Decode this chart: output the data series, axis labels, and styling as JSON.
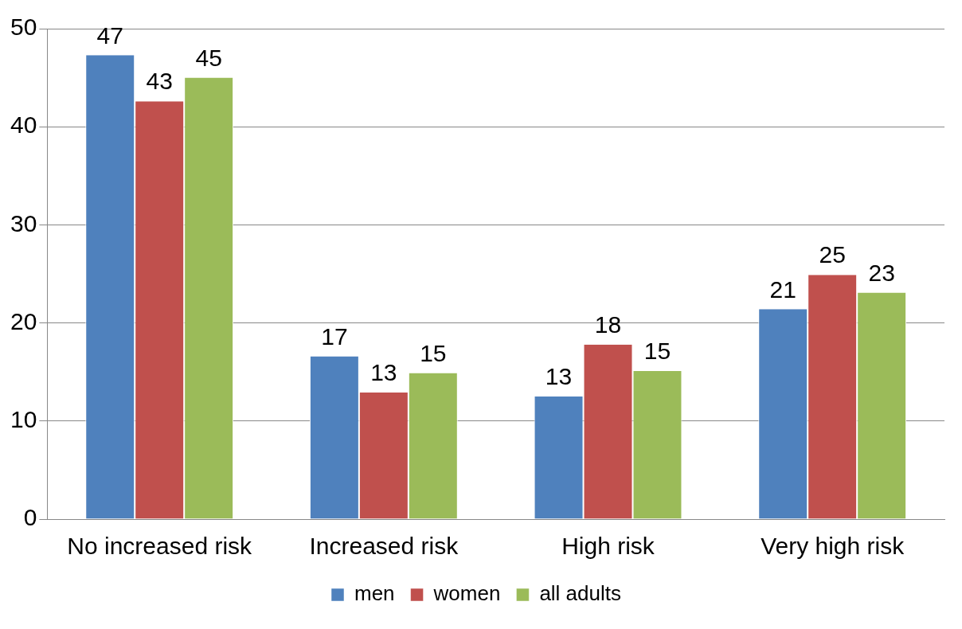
{
  "chart_data": {
    "type": "bar",
    "categories": [
      "No increased risk",
      "Increased risk",
      "High risk",
      "Very high risk"
    ],
    "series": [
      {
        "name": "men",
        "color": "#4f81bd",
        "values": [
          47.3,
          16.6,
          12.5,
          21.4
        ],
        "value_labels": [
          "47",
          "17",
          "13",
          "21"
        ]
      },
      {
        "name": "women",
        "color": "#c0504d",
        "values": [
          42.6,
          12.9,
          17.8,
          24.9
        ],
        "value_labels": [
          "43",
          "13",
          "18",
          "25"
        ]
      },
      {
        "name": "all adults",
        "color": "#9bbb59",
        "values": [
          45.0,
          14.9,
          15.1,
          23.1
        ],
        "value_labels": [
          "45",
          "15",
          "15",
          "23"
        ]
      }
    ],
    "ylim": [
      0,
      50
    ],
    "yticks": [
      0,
      10,
      20,
      30,
      40,
      50
    ],
    "grid": "y",
    "legend": "bottom"
  }
}
